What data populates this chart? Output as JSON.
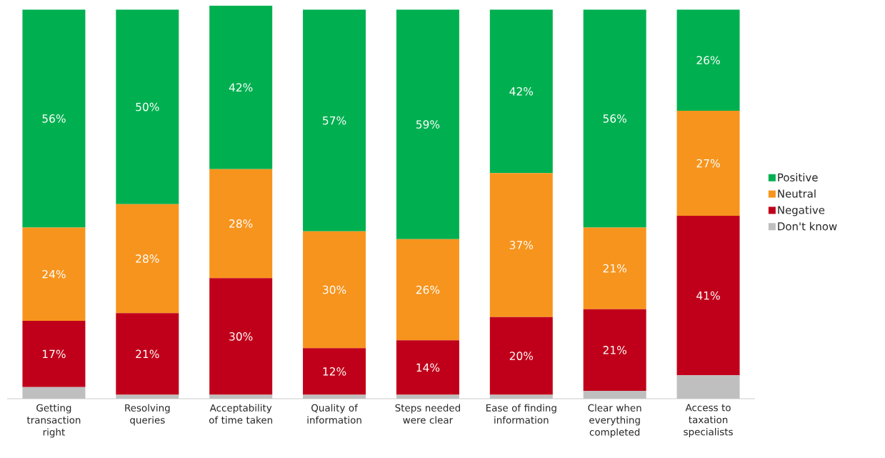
{
  "chart_data": {
    "type": "bar",
    "stacked": true,
    "legend": "right",
    "categories": [
      "Getting transaction right",
      "Resolving queries",
      "Acceptability of time taken",
      "Quality of information",
      "Steps needed were clear",
      "Ease of finding information",
      "Clear when everything completed",
      "Access to taxation specialists"
    ],
    "series": [
      {
        "name": "Don't know",
        "color": "#bfbfbf",
        "values": [
          3,
          1,
          1,
          1,
          1,
          1,
          2,
          6
        ],
        "value_labels": [
          null,
          null,
          null,
          null,
          null,
          null,
          null,
          null
        ]
      },
      {
        "name": "Negative",
        "color": "#c0001a",
        "values": [
          17,
          21,
          30,
          12,
          14,
          20,
          21,
          41
        ],
        "value_labels": [
          "17%",
          "21%",
          "30%",
          "12%",
          "14%",
          "20%",
          "21%",
          "41%"
        ]
      },
      {
        "name": "Neutral",
        "color": "#f7941d",
        "values": [
          24,
          28,
          28,
          30,
          26,
          37,
          21,
          27
        ],
        "value_labels": [
          "24%",
          "28%",
          "28%",
          "30%",
          "26%",
          "37%",
          "21%",
          "27%"
        ]
      },
      {
        "name": "Positive",
        "color": "#00b050",
        "values": [
          56,
          50,
          42,
          57,
          59,
          42,
          56,
          26
        ],
        "value_labels": [
          "56%",
          "50%",
          "42%",
          "57%",
          "59%",
          "42%",
          "56%",
          "26%"
        ]
      }
    ]
  }
}
